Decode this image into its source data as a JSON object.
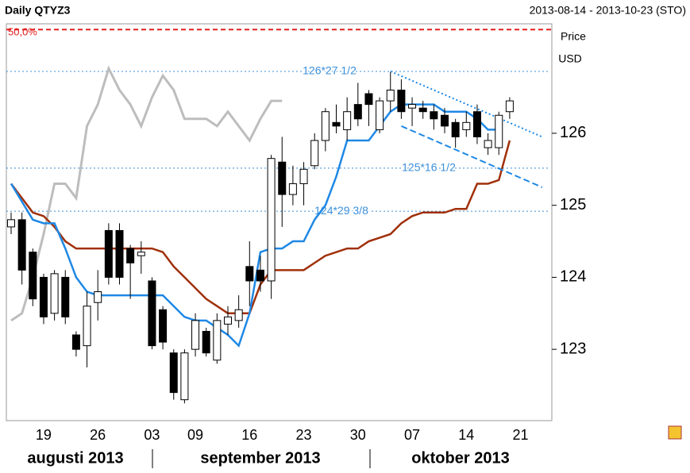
{
  "chart_data": {
    "type": "candlestick",
    "title": "Daily QTYZ3",
    "date_range": "2013-08-14 - 2013-10-23 (STO)",
    "y_axis_label": "Price",
    "y_axis_unit": "USD",
    "months": [
      "augusti 2013",
      "september 2013",
      "oktober 2013"
    ],
    "categories": [
      null,
      null,
      null,
      "19",
      null,
      null,
      null,
      null,
      "26",
      null,
      null,
      null,
      null,
      "03",
      null,
      null,
      null,
      "09",
      null,
      null,
      null,
      null,
      "16",
      null,
      null,
      null,
      null,
      "23",
      null,
      null,
      null,
      null,
      "30",
      null,
      null,
      null,
      null,
      "07",
      null,
      null,
      null,
      null,
      "14",
      null,
      null,
      null,
      null,
      "21",
      null,
      null
    ],
    "ylim": [
      122.01,
      127.52
    ],
    "yticks": [
      123,
      124,
      125,
      126
    ],
    "open": [
      124.7,
      124.8,
      124.35,
      124.0,
      123.5,
      124.0,
      123.2,
      123.05,
      123.65,
      124.65,
      124.65,
      124.4,
      124.3,
      123.95,
      123.55,
      122.95,
      122.3,
      123.0,
      123.25,
      122.85,
      123.35,
      123.4,
      124.15,
      124.1,
      123.95,
      125.6,
      125.15,
      125.3,
      125.55,
      125.9,
      126.15,
      126.05,
      126.4,
      126.55,
      126.05,
      126.45,
      126.6,
      126.35,
      126.35,
      126.3,
      126.25,
      126.15,
      126.05,
      126.3,
      125.8,
      125.8,
      126.3,
      null,
      null,
      null
    ],
    "high": [
      124.9,
      124.9,
      124.4,
      124.05,
      124.1,
      124.1,
      123.25,
      123.8,
      124.1,
      124.75,
      124.75,
      124.45,
      124.5,
      124.0,
      123.6,
      123.0,
      123.0,
      123.5,
      123.3,
      123.5,
      123.6,
      123.75,
      124.5,
      124.3,
      125.7,
      125.95,
      125.55,
      125.6,
      126.0,
      126.35,
      126.4,
      126.5,
      126.7,
      126.6,
      126.5,
      126.85,
      126.75,
      126.5,
      126.45,
      126.4,
      126.35,
      126.2,
      126.3,
      126.4,
      126.0,
      126.3,
      126.5,
      null,
      null,
      null
    ],
    "low": [
      124.6,
      123.9,
      123.6,
      123.35,
      123.4,
      123.35,
      122.9,
      122.75,
      123.4,
      123.9,
      123.9,
      123.7,
      124.05,
      123.0,
      123.0,
      122.3,
      122.25,
      122.9,
      122.9,
      122.8,
      123.2,
      123.3,
      123.6,
      123.8,
      123.7,
      124.7,
      125.0,
      125.0,
      125.5,
      125.75,
      126.0,
      125.9,
      126.1,
      126.1,
      126.0,
      126.3,
      126.2,
      126.1,
      126.2,
      126.05,
      126.0,
      125.8,
      125.95,
      125.85,
      125.7,
      125.7,
      126.2,
      null,
      null,
      null
    ],
    "close": [
      124.8,
      124.1,
      123.7,
      123.45,
      124.05,
      123.45,
      123.0,
      123.6,
      123.8,
      124.0,
      124.0,
      124.2,
      124.35,
      123.05,
      123.1,
      122.4,
      122.95,
      123.4,
      122.95,
      123.4,
      123.45,
      123.55,
      123.95,
      123.95,
      125.65,
      125.15,
      125.3,
      125.5,
      125.9,
      126.3,
      126.1,
      126.3,
      126.2,
      126.4,
      126.45,
      126.6,
      126.3,
      126.4,
      126.3,
      126.2,
      126.1,
      125.95,
      126.15,
      125.95,
      125.9,
      126.25,
      126.45,
      null,
      null,
      null
    ],
    "series": [
      {
        "color": "#bdbdbd",
        "values": [
          123.4,
          123.5,
          124.0,
          124.6,
          125.3,
          125.3,
          125.1,
          126.1,
          126.4,
          126.9,
          126.6,
          126.4,
          126.1,
          126.5,
          126.8,
          126.6,
          126.2,
          126.2,
          126.2,
          126.1,
          126.3,
          126.1,
          125.9,
          126.2,
          126.45,
          126.45,
          null,
          null,
          null,
          null,
          null,
          null,
          null,
          null,
          null,
          null,
          null,
          null,
          null,
          null,
          null,
          null,
          null,
          null,
          null,
          null,
          null,
          null,
          null,
          null
        ]
      },
      {
        "color": "#a0300a",
        "values": [
          125.3,
          125.1,
          124.9,
          124.85,
          124.7,
          124.5,
          124.4,
          124.4,
          124.4,
          124.4,
          124.4,
          124.4,
          124.4,
          124.4,
          124.35,
          124.15,
          124.0,
          123.85,
          123.7,
          123.6,
          123.5,
          123.5,
          123.5,
          123.9,
          124.1,
          124.1,
          124.1,
          124.1,
          124.2,
          124.3,
          124.35,
          124.4,
          124.4,
          124.5,
          124.55,
          124.6,
          124.75,
          124.85,
          124.9,
          124.9,
          124.9,
          124.95,
          124.95,
          125.3,
          125.3,
          125.35,
          125.9,
          null,
          null,
          null
        ]
      },
      {
        "color": "#1e88e5",
        "values": [
          125.3,
          125.05,
          124.8,
          124.75,
          124.75,
          124.4,
          124.0,
          123.8,
          123.75,
          123.75,
          123.75,
          123.75,
          123.75,
          123.75,
          123.75,
          123.6,
          123.45,
          123.4,
          123.4,
          123.3,
          123.2,
          123.05,
          123.5,
          124.35,
          124.4,
          124.4,
          124.5,
          124.5,
          124.8,
          125.0,
          125.4,
          125.9,
          125.9,
          125.9,
          126.1,
          126.3,
          126.4,
          126.4,
          126.4,
          126.4,
          126.3,
          126.3,
          126.3,
          126.2,
          126.05,
          126.05,
          null,
          null,
          null,
          null
        ]
      }
    ],
    "levels": [
      {
        "value": 126.859,
        "label": "126*27 1/2"
      },
      {
        "value": 125.516,
        "label": "125*16 1/2"
      },
      {
        "value": 124.918,
        "label": "124*29 3/8"
      }
    ],
    "fib_line": {
      "value": 127.44,
      "label": "50,0%"
    },
    "trendlines": [
      {
        "x": [
          35,
          49
        ],
        "y": [
          126.86,
          125.95
        ]
      },
      {
        "x": [
          36,
          49
        ],
        "y": [
          126.1,
          125.25
        ]
      }
    ]
  }
}
